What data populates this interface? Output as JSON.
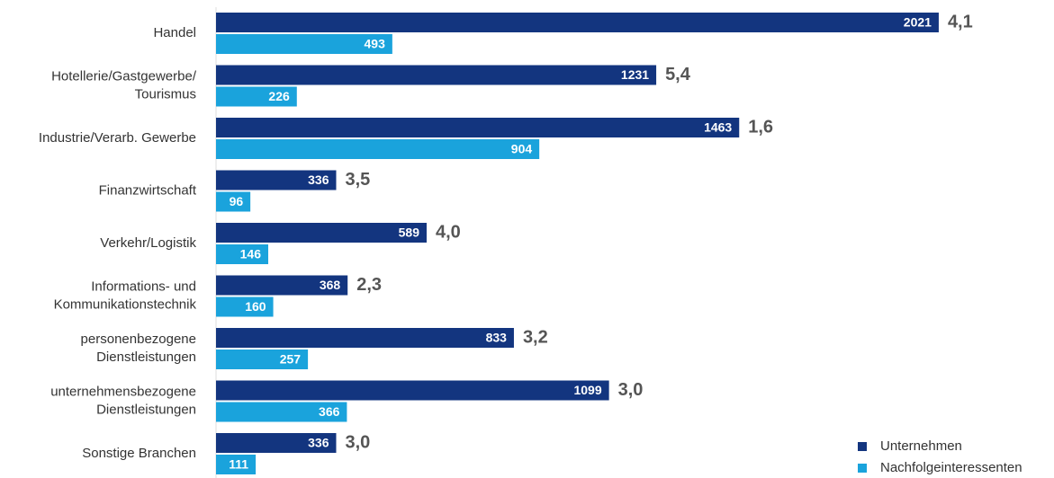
{
  "chart_data": {
    "type": "bar",
    "orientation": "horizontal",
    "categories": [
      [
        "Handel"
      ],
      [
        "Hotellerie/Gastgewerbe/",
        "Tourismus"
      ],
      [
        "Industrie/Verarb. Gewerbe"
      ],
      [
        "Finanzwirtschaft"
      ],
      [
        "Verkehr/Logistik"
      ],
      [
        "Informations- und",
        "Kommunikationstechnik"
      ],
      [
        "personenbezogene",
        "Dienstleistungen"
      ],
      [
        "unternehmensbezogene",
        "Dienstleistungen"
      ],
      [
        "Sonstige Branchen"
      ]
    ],
    "series": [
      {
        "name": "Unternehmen",
        "color": "#13357f",
        "values": [
          2021,
          1231,
          1463,
          336,
          589,
          368,
          833,
          1099,
          336
        ]
      },
      {
        "name": "Nachfolgeinteressenten",
        "color": "#1aa3dc",
        "values": [
          493,
          226,
          904,
          96,
          146,
          160,
          257,
          366,
          111
        ]
      }
    ],
    "annotations": [
      "4,1",
      "5,4",
      "1,6",
      "3,5",
      "4,0",
      "2,3",
      "3,2",
      "3,0",
      "3,0"
    ],
    "legend": "bottom-right"
  }
}
